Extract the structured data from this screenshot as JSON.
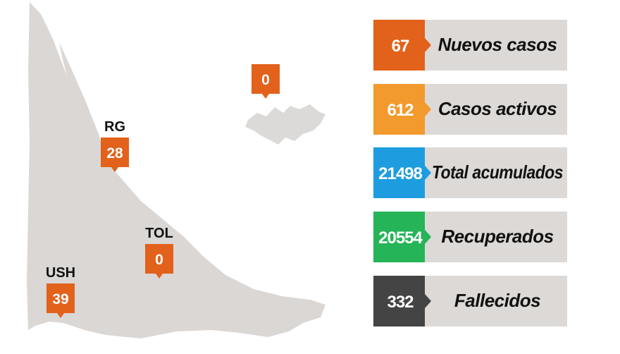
{
  "markers": [
    {
      "name": "RG",
      "value": 28
    },
    {
      "value": 0
    },
    {
      "name": "TOL",
      "value": 0
    },
    {
      "name": "USH",
      "value": 39
    }
  ],
  "stats": [
    {
      "value": 67,
      "label": "Nuevos casos"
    },
    {
      "value": 612,
      "label": "Casos activos"
    },
    {
      "value": 21498,
      "label": "Total acumulados"
    },
    {
      "value": 20554,
      "label": "Recuperados"
    },
    {
      "value": 332,
      "label": "Fallecidos"
    }
  ]
}
